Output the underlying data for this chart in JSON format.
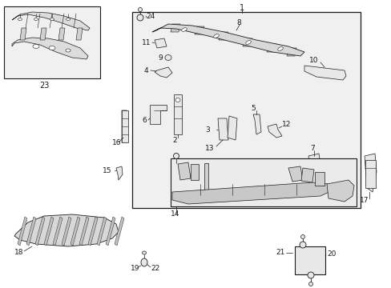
{
  "bg_color": "#ffffff",
  "line_color": "#1a1a1a",
  "box_fill": "#f0f0f0",
  "part_fill": "#e8e8e8",
  "fig_width": 4.89,
  "fig_height": 3.6,
  "dpi": 100
}
